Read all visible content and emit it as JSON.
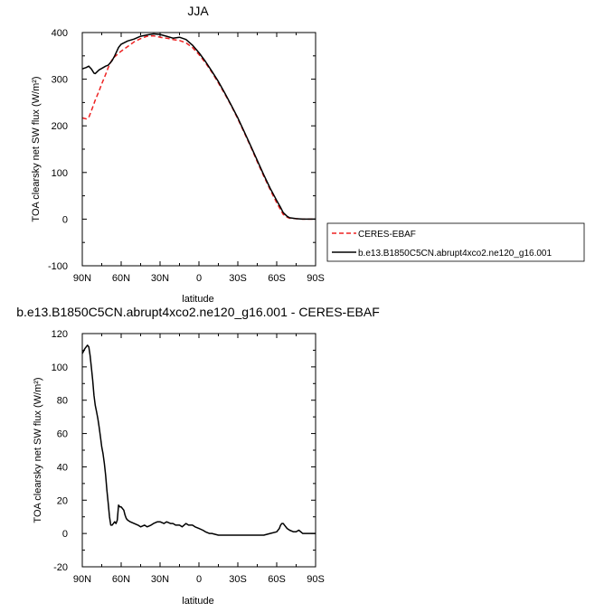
{
  "chart_data": [
    {
      "type": "line",
      "title": "JJA",
      "xlabel": "latitude",
      "ylabel": "TOA clearsky net SW flux (W/m²)",
      "xlim": [
        90,
        -90
      ],
      "ylim": [
        -100,
        400
      ],
      "x_ticks": [
        90,
        60,
        30,
        0,
        -30,
        -60,
        -90
      ],
      "x_tick_labels": [
        "90N",
        "60N",
        "30N",
        "0",
        "30S",
        "60S",
        "90S"
      ],
      "y_ticks": [
        -100,
        0,
        100,
        200,
        300,
        400
      ],
      "y_tick_labels": [
        "-100",
        "0",
        "100",
        "200",
        "300",
        "400"
      ],
      "legend": {
        "placement": "right",
        "entries": [
          "CERES-EBAF",
          "b.e13.B1850C5CN.abrupt4xco2.ne120_g16.001"
        ]
      },
      "series": [
        {
          "name": "CERES-EBAF",
          "color": "#ee2222",
          "style": "dashed",
          "x": [
            90,
            87,
            85,
            83,
            80,
            77,
            75,
            72,
            70,
            67,
            65,
            60,
            55,
            50,
            45,
            40,
            35,
            30,
            25,
            20,
            15,
            10,
            5,
            0,
            -5,
            -10,
            -15,
            -20,
            -25,
            -30,
            -35,
            -40,
            -45,
            -50,
            -55,
            -60,
            -63,
            -65,
            -68,
            -70,
            -75,
            -80,
            -85,
            -90
          ],
          "values": [
            217,
            215,
            218,
            232,
            255,
            275,
            290,
            310,
            325,
            342,
            348,
            360,
            370,
            380,
            387,
            392,
            393,
            390,
            388,
            385,
            383,
            378,
            368,
            353,
            335,
            315,
            292,
            268,
            243,
            215,
            185,
            155,
            123,
            92,
            63,
            35,
            20,
            10,
            4,
            2,
            1,
            0,
            0,
            0
          ]
        },
        {
          "name": "b.e13.B1850C5CN.abrupt4xco2.ne120_g16.001",
          "color": "#000000",
          "style": "solid",
          "x": [
            90,
            87,
            85,
            83,
            81,
            80,
            77,
            75,
            72,
            70,
            67,
            65,
            62,
            60,
            55,
            50,
            45,
            40,
            35,
            30,
            25,
            20,
            15,
            10,
            5,
            0,
            -5,
            -10,
            -15,
            -20,
            -25,
            -30,
            -35,
            -40,
            -45,
            -50,
            -55,
            -60,
            -63,
            -65,
            -68,
            -70,
            -75,
            -80,
            -85,
            -90
          ],
          "values": [
            322,
            325,
            328,
            322,
            313,
            312,
            320,
            323,
            328,
            330,
            340,
            350,
            368,
            375,
            382,
            386,
            392,
            395,
            397,
            396,
            392,
            388,
            390,
            385,
            373,
            357,
            338,
            317,
            295,
            270,
            244,
            217,
            187,
            157,
            126,
            95,
            66,
            40,
            25,
            14,
            6,
            3,
            1,
            0,
            0,
            0
          ]
        }
      ]
    },
    {
      "type": "line",
      "title": "b.e13.B1850C5CN.abrupt4xco2.ne120_g16.001 - CERES-EBAF",
      "xlabel": "latitude",
      "ylabel": "TOA clearsky net SW flux (W/m²)",
      "xlim": [
        90,
        -90
      ],
      "ylim": [
        -20,
        120
      ],
      "x_ticks": [
        90,
        60,
        30,
        0,
        -30,
        -60,
        -90
      ],
      "x_tick_labels": [
        "90N",
        "60N",
        "30N",
        "0",
        "30S",
        "60S",
        "90S"
      ],
      "y_ticks": [
        -20,
        0,
        20,
        40,
        60,
        80,
        100,
        120
      ],
      "y_tick_labels": [
        "-20",
        "0",
        "20",
        "40",
        "60",
        "80",
        "100",
        "120"
      ],
      "series": [
        {
          "color": "#000000",
          "style": "solid",
          "x": [
            90,
            88,
            86,
            85,
            84,
            83,
            82,
            81,
            80,
            79,
            78,
            77,
            76,
            75,
            74,
            73,
            72,
            71,
            70,
            69,
            68,
            67,
            66,
            65,
            64,
            63,
            62,
            61,
            60,
            59,
            58,
            57,
            56,
            55,
            53,
            50,
            47,
            45,
            42,
            40,
            37,
            35,
            32,
            30,
            27,
            25,
            22,
            20,
            18,
            15,
            13,
            10,
            8,
            5,
            3,
            0,
            -3,
            -5,
            -8,
            -10,
            -15,
            -20,
            -25,
            -30,
            -35,
            -40,
            -45,
            -50,
            -55,
            -60,
            -62,
            -63,
            -64,
            -65,
            -66,
            -68,
            -70,
            -73,
            -75,
            -77,
            -80,
            -85,
            -90
          ],
          "values": [
            108,
            111,
            113,
            112,
            107,
            100,
            92,
            83,
            77,
            73,
            69,
            64,
            58,
            52,
            48,
            42,
            35,
            26,
            18,
            10,
            5,
            5,
            6,
            7,
            6,
            8,
            17,
            16,
            16,
            15,
            14,
            11,
            9,
            8,
            7,
            6,
            5,
            4,
            5,
            4,
            5,
            6,
            7,
            7,
            6,
            7,
            6,
            6,
            5,
            5,
            4,
            6,
            5,
            5,
            4,
            3,
            2,
            1,
            0,
            0,
            -1,
            -1,
            -1,
            -1,
            -1,
            -1,
            -1,
            -1,
            0,
            1,
            3,
            5,
            6,
            6,
            5,
            3,
            2,
            1,
            1,
            2,
            0,
            0,
            0
          ]
        }
      ]
    }
  ]
}
